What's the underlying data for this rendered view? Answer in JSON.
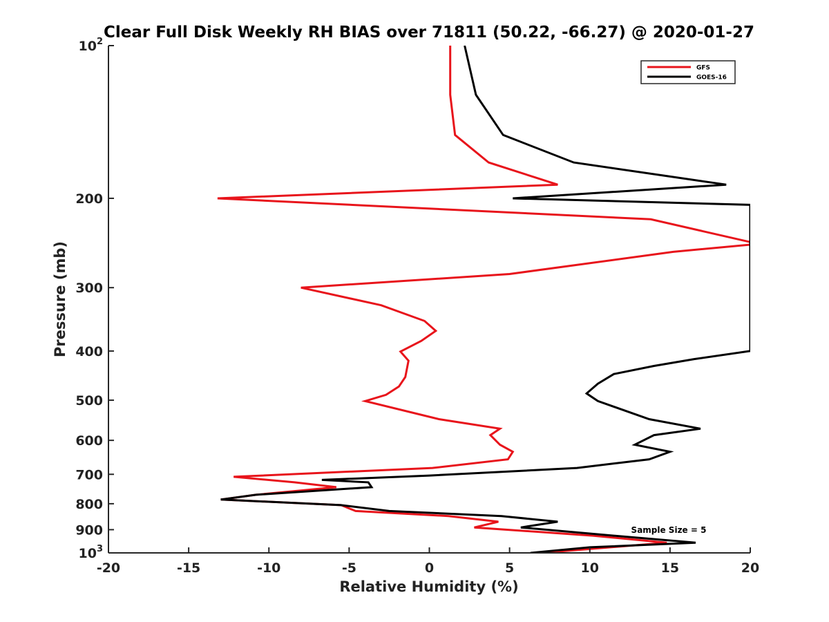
{
  "chart_data": {
    "type": "line",
    "title": "Clear Full Disk Weekly RH BIAS over 71811 (50.22, -66.27) @ 2020-01-27",
    "xlabel": "Relative Humidity (%)",
    "ylabel": "Pressure (mb)",
    "xlim": [
      -20,
      20
    ],
    "ylim": [
      100,
      1000
    ],
    "yscale": "log",
    "y_reversed": true,
    "grid": false,
    "x_ticks": [
      -20,
      -15,
      -10,
      -5,
      0,
      5,
      10,
      15,
      20
    ],
    "x_tick_labels": [
      "-20",
      "-15",
      "-10",
      "-5",
      "0",
      "5",
      "10",
      "15",
      "20"
    ],
    "y_ticks": [
      100,
      200,
      300,
      400,
      500,
      600,
      700,
      800,
      900,
      1000
    ],
    "y_tick_labels": [
      {
        "base": "10",
        "sup": "2"
      },
      {
        "base": "200",
        "sup": ""
      },
      {
        "base": "300",
        "sup": ""
      },
      {
        "base": "400",
        "sup": ""
      },
      {
        "base": "500",
        "sup": ""
      },
      {
        "base": "600",
        "sup": ""
      },
      {
        "base": "700",
        "sup": ""
      },
      {
        "base": "800",
        "sup": ""
      },
      {
        "base": "900",
        "sup": ""
      },
      {
        "base": "10",
        "sup": "3"
      }
    ],
    "legend_position": "top-right",
    "annotation": "Sample Size = 5",
    "series": [
      {
        "name": "GFS",
        "color": "#e8141b",
        "points": [
          [
            1.3,
            100
          ],
          [
            1.3,
            125
          ],
          [
            1.6,
            150
          ],
          [
            3.7,
            170
          ],
          [
            8.0,
            188
          ],
          [
            -13.2,
            200
          ],
          [
            13.8,
            220
          ],
          [
            20.5,
            246
          ],
          [
            15.2,
            255
          ],
          [
            5.0,
            282
          ],
          [
            -8.0,
            300
          ],
          [
            -3.0,
            325
          ],
          [
            -0.3,
            349
          ],
          [
            0.4,
            365
          ],
          [
            -0.5,
            382
          ],
          [
            -1.8,
            401
          ],
          [
            -1.3,
            418
          ],
          [
            -1.5,
            450
          ],
          [
            -1.9,
            470
          ],
          [
            -2.7,
            488
          ],
          [
            -4.0,
            502
          ],
          [
            0.6,
            545
          ],
          [
            4.4,
            569
          ],
          [
            3.8,
            586
          ],
          [
            4.4,
            612
          ],
          [
            5.2,
            632
          ],
          [
            4.9,
            654
          ],
          [
            0.2,
            680
          ],
          [
            -12.2,
            708
          ],
          [
            -8.4,
            726
          ],
          [
            -5.8,
            742
          ],
          [
            -10.8,
            768
          ],
          [
            -13.0,
            785
          ],
          [
            -5.5,
            805
          ],
          [
            -4.6,
            827
          ],
          [
            1.2,
            846
          ],
          [
            4.3,
            868
          ],
          [
            2.8,
            891
          ],
          [
            10.2,
            925
          ],
          [
            14.8,
            955
          ],
          [
            7.0,
            1000
          ]
        ]
      },
      {
        "name": "GOES-16",
        "color": "#000000",
        "points": [
          [
            2.2,
            100
          ],
          [
            2.9,
            125
          ],
          [
            4.6,
            150
          ],
          [
            9.0,
            170
          ],
          [
            18.5,
            188
          ],
          [
            5.2,
            200
          ],
          [
            20.0,
            206
          ],
          [
            20.0,
            400
          ],
          [
            16.5,
            415
          ],
          [
            14.0,
            428
          ],
          [
            11.5,
            444
          ],
          [
            10.5,
            464
          ],
          [
            9.8,
            485
          ],
          [
            10.5,
            502
          ],
          [
            13.7,
            545
          ],
          [
            16.9,
            569
          ],
          [
            14.0,
            586
          ],
          [
            12.8,
            612
          ],
          [
            15.0,
            632
          ],
          [
            13.7,
            654
          ],
          [
            9.2,
            680
          ],
          [
            0,
            704
          ],
          [
            -6.7,
            718
          ],
          [
            -3.8,
            726
          ],
          [
            -3.6,
            742
          ],
          [
            -10.8,
            768
          ],
          [
            -13.0,
            785
          ],
          [
            -5.5,
            805
          ],
          [
            -2.5,
            827
          ],
          [
            4.5,
            846
          ],
          [
            8.0,
            868
          ],
          [
            5.7,
            891
          ],
          [
            11.5,
            925
          ],
          [
            16.6,
            955
          ],
          [
            10.0,
            975
          ],
          [
            6.3,
            1000
          ]
        ]
      }
    ]
  }
}
